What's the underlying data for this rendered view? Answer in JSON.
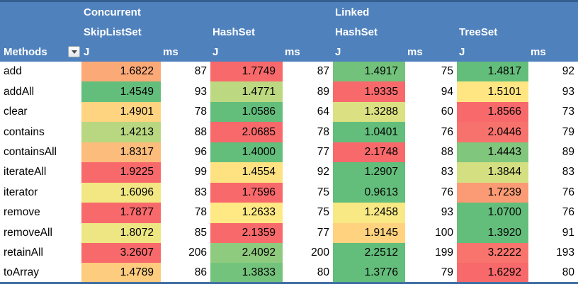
{
  "colors": {
    "header_bg": "#4F81BD",
    "header_text": "#FFFFFF",
    "top_bar": "#365F91",
    "bottom_border": "#4472A4",
    "scale_min_green": "#63BE7B",
    "scale_mid_yellow": "#FFEB84",
    "scale_max_red": "#F8696B"
  },
  "header": {
    "methods_label": "Methods",
    "groups": [
      {
        "line1": "Concurrent",
        "line2": "SkipListSet",
        "j_label": "J",
        "ms_label": "ms"
      },
      {
        "line1": "",
        "line2": "HashSet",
        "j_label": "J",
        "ms_label": "ms"
      },
      {
        "line1": "Linked",
        "line2": "HashSet",
        "j_label": "J",
        "ms_label": "ms"
      },
      {
        "line1": "",
        "line2": "TreeSet",
        "j_label": "J",
        "ms_label": "ms"
      }
    ]
  },
  "rows": [
    {
      "method": "add",
      "values": [
        {
          "j": "1.6822",
          "color": "#FBA977",
          "ms": "87"
        },
        {
          "j": "1.7749",
          "color": "#F8696B",
          "ms": "87"
        },
        {
          "j": "1.4917",
          "color": "#72C27C",
          "ms": "75"
        },
        {
          "j": "1.4817",
          "color": "#63BE7B",
          "ms": "92"
        }
      ]
    },
    {
      "method": "addAll",
      "values": [
        {
          "j": "1.4549",
          "color": "#63BE7B",
          "ms": "93"
        },
        {
          "j": "1.4771",
          "color": "#BCD880",
          "ms": "89"
        },
        {
          "j": "1.9335",
          "color": "#F8696B",
          "ms": "94"
        },
        {
          "j": "1.5101",
          "color": "#FFE683",
          "ms": "93"
        }
      ]
    },
    {
      "method": "clear",
      "values": [
        {
          "j": "1.4901",
          "color": "#FED480",
          "ms": "78"
        },
        {
          "j": "1.0586",
          "color": "#63BE7B",
          "ms": "64"
        },
        {
          "j": "1.3288",
          "color": "#DBE182",
          "ms": "60"
        },
        {
          "j": "1.8566",
          "color": "#F8696B",
          "ms": "73"
        }
      ]
    },
    {
      "method": "contains",
      "values": [
        {
          "j": "1.4213",
          "color": "#B9D780",
          "ms": "88"
        },
        {
          "j": "2.0685",
          "color": "#F8696B",
          "ms": "78"
        },
        {
          "j": "1.0401",
          "color": "#63BE7B",
          "ms": "76"
        },
        {
          "j": "2.0446",
          "color": "#F8726D",
          "ms": "79"
        }
      ]
    },
    {
      "method": "containsAll",
      "values": [
        {
          "j": "1.8317",
          "color": "#FCBC7B",
          "ms": "96"
        },
        {
          "j": "1.4000",
          "color": "#63BE7B",
          "ms": "77"
        },
        {
          "j": "2.1748",
          "color": "#F8696B",
          "ms": "88"
        },
        {
          "j": "1.4443",
          "color": "#80C67D",
          "ms": "89"
        }
      ]
    },
    {
      "method": "iterateAll",
      "values": [
        {
          "j": "1.9225",
          "color": "#F8696B",
          "ms": "99"
        },
        {
          "j": "1.4554",
          "color": "#FEE282",
          "ms": "92"
        },
        {
          "j": "1.2907",
          "color": "#63BE7B",
          "ms": "83"
        },
        {
          "j": "1.3844",
          "color": "#D4DF81",
          "ms": "83"
        }
      ]
    },
    {
      "method": "iterator",
      "values": [
        {
          "j": "1.6096",
          "color": "#F2E783",
          "ms": "83"
        },
        {
          "j": "1.7596",
          "color": "#F8696B",
          "ms": "75"
        },
        {
          "j": "0.9613",
          "color": "#63BE7B",
          "ms": "76"
        },
        {
          "j": "1.7239",
          "color": "#FB9B75",
          "ms": "76"
        }
      ]
    },
    {
      "method": "remove",
      "values": [
        {
          "j": "1.7877",
          "color": "#F8696B",
          "ms": "78"
        },
        {
          "j": "1.2633",
          "color": "#FFE984",
          "ms": "75"
        },
        {
          "j": "1.2458",
          "color": "#F8E984",
          "ms": "93"
        },
        {
          "j": "1.0700",
          "color": "#63BE7B",
          "ms": "76"
        }
      ]
    },
    {
      "method": "removeAll",
      "values": [
        {
          "j": "1.8072",
          "color": "#EDE683",
          "ms": "85"
        },
        {
          "j": "2.1359",
          "color": "#F8696B",
          "ms": "77"
        },
        {
          "j": "1.9145",
          "color": "#FED27F",
          "ms": "100"
        },
        {
          "j": "1.3920",
          "color": "#63BE7B",
          "ms": "91"
        }
      ]
    },
    {
      "method": "retainAll",
      "values": [
        {
          "j": "3.2607",
          "color": "#F8696B",
          "ms": "206"
        },
        {
          "j": "2.4092",
          "color": "#8FCB7E",
          "ms": "200"
        },
        {
          "j": "2.2512",
          "color": "#63BE7B",
          "ms": "199"
        },
        {
          "j": "3.2222",
          "color": "#F9746D",
          "ms": "193"
        }
      ]
    },
    {
      "method": "toArray",
      "values": [
        {
          "j": "1.4789",
          "color": "#FDCC7E",
          "ms": "86"
        },
        {
          "j": "1.3833",
          "color": "#74C37C",
          "ms": "80"
        },
        {
          "j": "1.3776",
          "color": "#63BE7B",
          "ms": "79"
        },
        {
          "j": "1.6292",
          "color": "#F8696B",
          "ms": "80"
        }
      ]
    }
  ]
}
